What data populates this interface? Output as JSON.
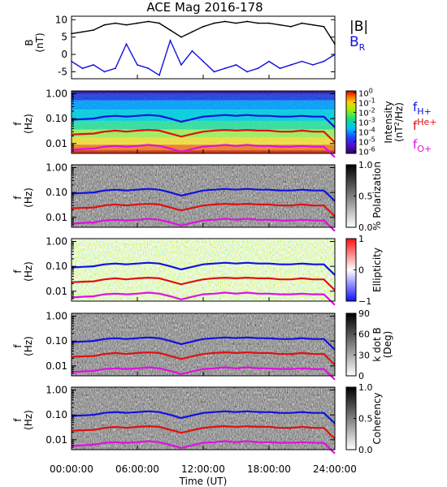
{
  "title": "ACE Mag 2016-178",
  "x_axis": {
    "label": "Time (UT)",
    "ticks": [
      "00:00:00",
      "06:00:00",
      "12:00:00",
      "18:00:00",
      "24:00:00"
    ],
    "range_hours": [
      0,
      24
    ]
  },
  "colors": {
    "B_total": "#000000",
    "B_R": "#1010e0",
    "f_H": "#1010e0",
    "f_He": "#e01010",
    "f_O": "#e010e0"
  },
  "chart_data": [
    {
      "type": "line",
      "ylabel": "B",
      "yunit": "(nT)",
      "ylim": [
        -7,
        11
      ],
      "yticks": [
        "10",
        "5",
        "0",
        "-5"
      ],
      "ytick_values": [
        10,
        5,
        0,
        -5
      ],
      "legend": [
        "|B|",
        "B_R"
      ],
      "legend_main": [
        "|B|",
        "B"
      ],
      "legend_sub": [
        "",
        "R"
      ],
      "series": [
        {
          "name": "|B|",
          "color": "#000000",
          "x": [
            0,
            1,
            2,
            3,
            4,
            5,
            6,
            7,
            8,
            9,
            10,
            11,
            12,
            13,
            14,
            15,
            16,
            17,
            18,
            19,
            20,
            21,
            22,
            23,
            24
          ],
          "y": [
            6,
            6.5,
            7,
            8.5,
            9,
            8.5,
            9,
            9.5,
            9,
            7,
            5,
            6.5,
            8,
            9,
            9.5,
            9,
            9.5,
            9,
            9,
            8.5,
            8,
            9,
            8.5,
            8,
            3
          ]
        },
        {
          "name": "B_R",
          "color": "#1010e0",
          "x": [
            0,
            1,
            2,
            3,
            4,
            5,
            6,
            7,
            8,
            9,
            10,
            11,
            12,
            13,
            14,
            15,
            16,
            17,
            18,
            19,
            20,
            21,
            22,
            23,
            24
          ],
          "y": [
            -2,
            -4,
            -3,
            -5,
            -4,
            3,
            -3,
            -4,
            -6,
            4,
            -3,
            1,
            -2,
            -5,
            -4,
            -3,
            -5,
            -4,
            -2,
            -4,
            -3,
            -2,
            -3,
            -2,
            0
          ]
        }
      ]
    },
    {
      "type": "heatmap",
      "ylabel": "f",
      "yunit": "(Hz)",
      "yticks": [
        "1.00",
        "0.10",
        "0.01"
      ],
      "ytick_values": [
        1,
        0.1,
        0.01
      ],
      "ylim": [
        0.004,
        1.3
      ],
      "colorbar": {
        "label": "Intensity",
        "unit": "(nT²/Hz)",
        "unit_main": "(nT",
        "unit_sup": "2",
        "unit_tail": "/Hz)",
        "ticks": [
          "10",
          "10",
          "10",
          "10",
          "10",
          "10",
          "10"
        ],
        "exponents": [
          "0",
          "-1",
          "-2",
          "-3",
          "-4",
          "-5",
          "-6"
        ],
        "values": [
          0,
          -1,
          -2,
          -3,
          -4,
          -5,
          -6
        ],
        "range": [
          -6.2,
          0.2
        ],
        "scale": "rainbow"
      },
      "legend": [
        "f_H+",
        "f_He+",
        "f_O+"
      ],
      "legend_main": [
        "f",
        "f",
        "f"
      ],
      "legend_sub": [
        "H+",
        "He+",
        "O+"
      ],
      "legend_position": "right"
    },
    {
      "type": "heatmap",
      "ylabel": "f",
      "yunit": "(Hz)",
      "yticks": [
        "1.00",
        "0.10",
        "0.01"
      ],
      "ytick_values": [
        1,
        0.1,
        0.01
      ],
      "ylim": [
        0.004,
        1.3
      ],
      "colorbar": {
        "label": "% Polarization",
        "ticks": [
          "1.0",
          "0.5",
          "0.0"
        ],
        "values": [
          1.0,
          0.5,
          0.0
        ],
        "range": [
          0,
          1
        ],
        "scale": "gray"
      }
    },
    {
      "type": "heatmap",
      "ylabel": "f",
      "yunit": "(Hz)",
      "yticks": [
        "1.00",
        "0.10",
        "0.01"
      ],
      "ytick_values": [
        1,
        0.1,
        0.01
      ],
      "ylim": [
        0.004,
        1.3
      ],
      "colorbar": {
        "label": "Ellipticity",
        "ticks": [
          "1",
          "0",
          "−1"
        ],
        "values": [
          1,
          0,
          -1
        ],
        "range": [
          -1,
          1
        ],
        "scale": "bluewhitered"
      }
    },
    {
      "type": "heatmap",
      "ylabel": "f",
      "yunit": "(Hz)",
      "yticks": [
        "1.00",
        "0.10",
        "0.01"
      ],
      "ytick_values": [
        1,
        0.1,
        0.01
      ],
      "ylim": [
        0.004,
        1.3
      ],
      "colorbar": {
        "label": "k dot B",
        "unit": "(Deg)",
        "ticks": [
          "90",
          "60",
          "30",
          "0"
        ],
        "values": [
          90,
          60,
          30,
          0
        ],
        "range": [
          0,
          90
        ],
        "scale": "gray"
      }
    },
    {
      "type": "heatmap",
      "ylabel": "f",
      "yunit": "(Hz)",
      "yticks": [
        "1.00",
        "0.10",
        "0.01"
      ],
      "ytick_values": [
        1,
        0.1,
        0.01
      ],
      "ylim": [
        0.004,
        1.3
      ],
      "colorbar": {
        "label": "Coherency",
        "ticks": [
          "1.0",
          "0.5",
          "0.0"
        ],
        "values": [
          1.0,
          0.5,
          0.0
        ],
        "range": [
          0,
          1
        ],
        "scale": "gray"
      }
    }
  ],
  "gyrofrequency": {
    "x": [
      0,
      1,
      2,
      3,
      4,
      5,
      6,
      7,
      8,
      9,
      10,
      11,
      12,
      13,
      14,
      15,
      16,
      17,
      18,
      19,
      20,
      21,
      22,
      23,
      24
    ],
    "f_H": [
      0.09,
      0.095,
      0.1,
      0.12,
      0.13,
      0.12,
      0.13,
      0.14,
      0.13,
      0.1,
      0.075,
      0.095,
      0.12,
      0.13,
      0.14,
      0.13,
      0.14,
      0.13,
      0.13,
      0.12,
      0.12,
      0.13,
      0.12,
      0.12,
      0.045
    ],
    "f_He": [
      0.023,
      0.024,
      0.025,
      0.03,
      0.033,
      0.03,
      0.033,
      0.035,
      0.033,
      0.025,
      0.019,
      0.024,
      0.03,
      0.033,
      0.035,
      0.033,
      0.035,
      0.033,
      0.033,
      0.03,
      0.03,
      0.033,
      0.03,
      0.03,
      0.011
    ],
    "f_O": [
      0.0056,
      0.006,
      0.0063,
      0.0075,
      0.008,
      0.0075,
      0.008,
      0.0088,
      0.008,
      0.0063,
      0.0047,
      0.006,
      0.0075,
      0.008,
      0.0088,
      0.008,
      0.0088,
      0.008,
      0.008,
      0.0075,
      0.0075,
      0.008,
      0.0075,
      0.0075,
      0.0028
    ]
  }
}
